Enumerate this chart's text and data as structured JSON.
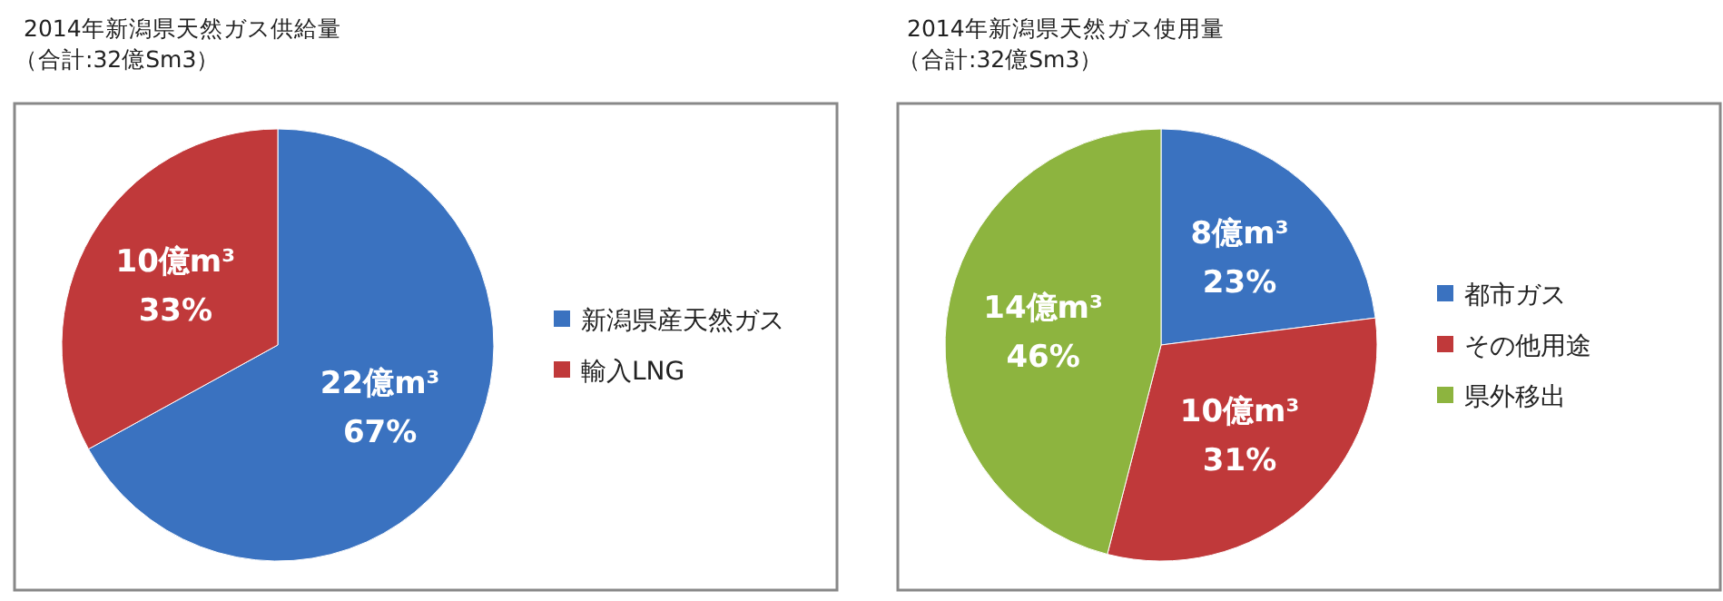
{
  "chart_data": [
    {
      "type": "pie",
      "title": "2014年新潟県天然ガス供給量",
      "subtitle": "（合計:32億Sm3）",
      "categories": [
        "新潟県産天然ガス",
        "輸入LNG"
      ],
      "values": [
        67,
        33
      ],
      "colors": [
        "#3a72c0",
        "#c0393a"
      ],
      "value_labels": [
        "22億m³\n67%",
        "10億m³\n33%"
      ],
      "legend": "right"
    },
    {
      "type": "pie",
      "title": "2014年新潟県天然ガス使用量",
      "subtitle": "（合計:32億Sm3）",
      "categories": [
        "都市ガス",
        "その他用途",
        "県外移出"
      ],
      "values": [
        23,
        31,
        46
      ],
      "colors": [
        "#3a72c0",
        "#c0393a",
        "#8db43f"
      ],
      "value_labels": [
        "8億m³\n23%",
        "10億m³\n31%",
        "14億m³\n46%"
      ],
      "legend": "right"
    }
  ]
}
